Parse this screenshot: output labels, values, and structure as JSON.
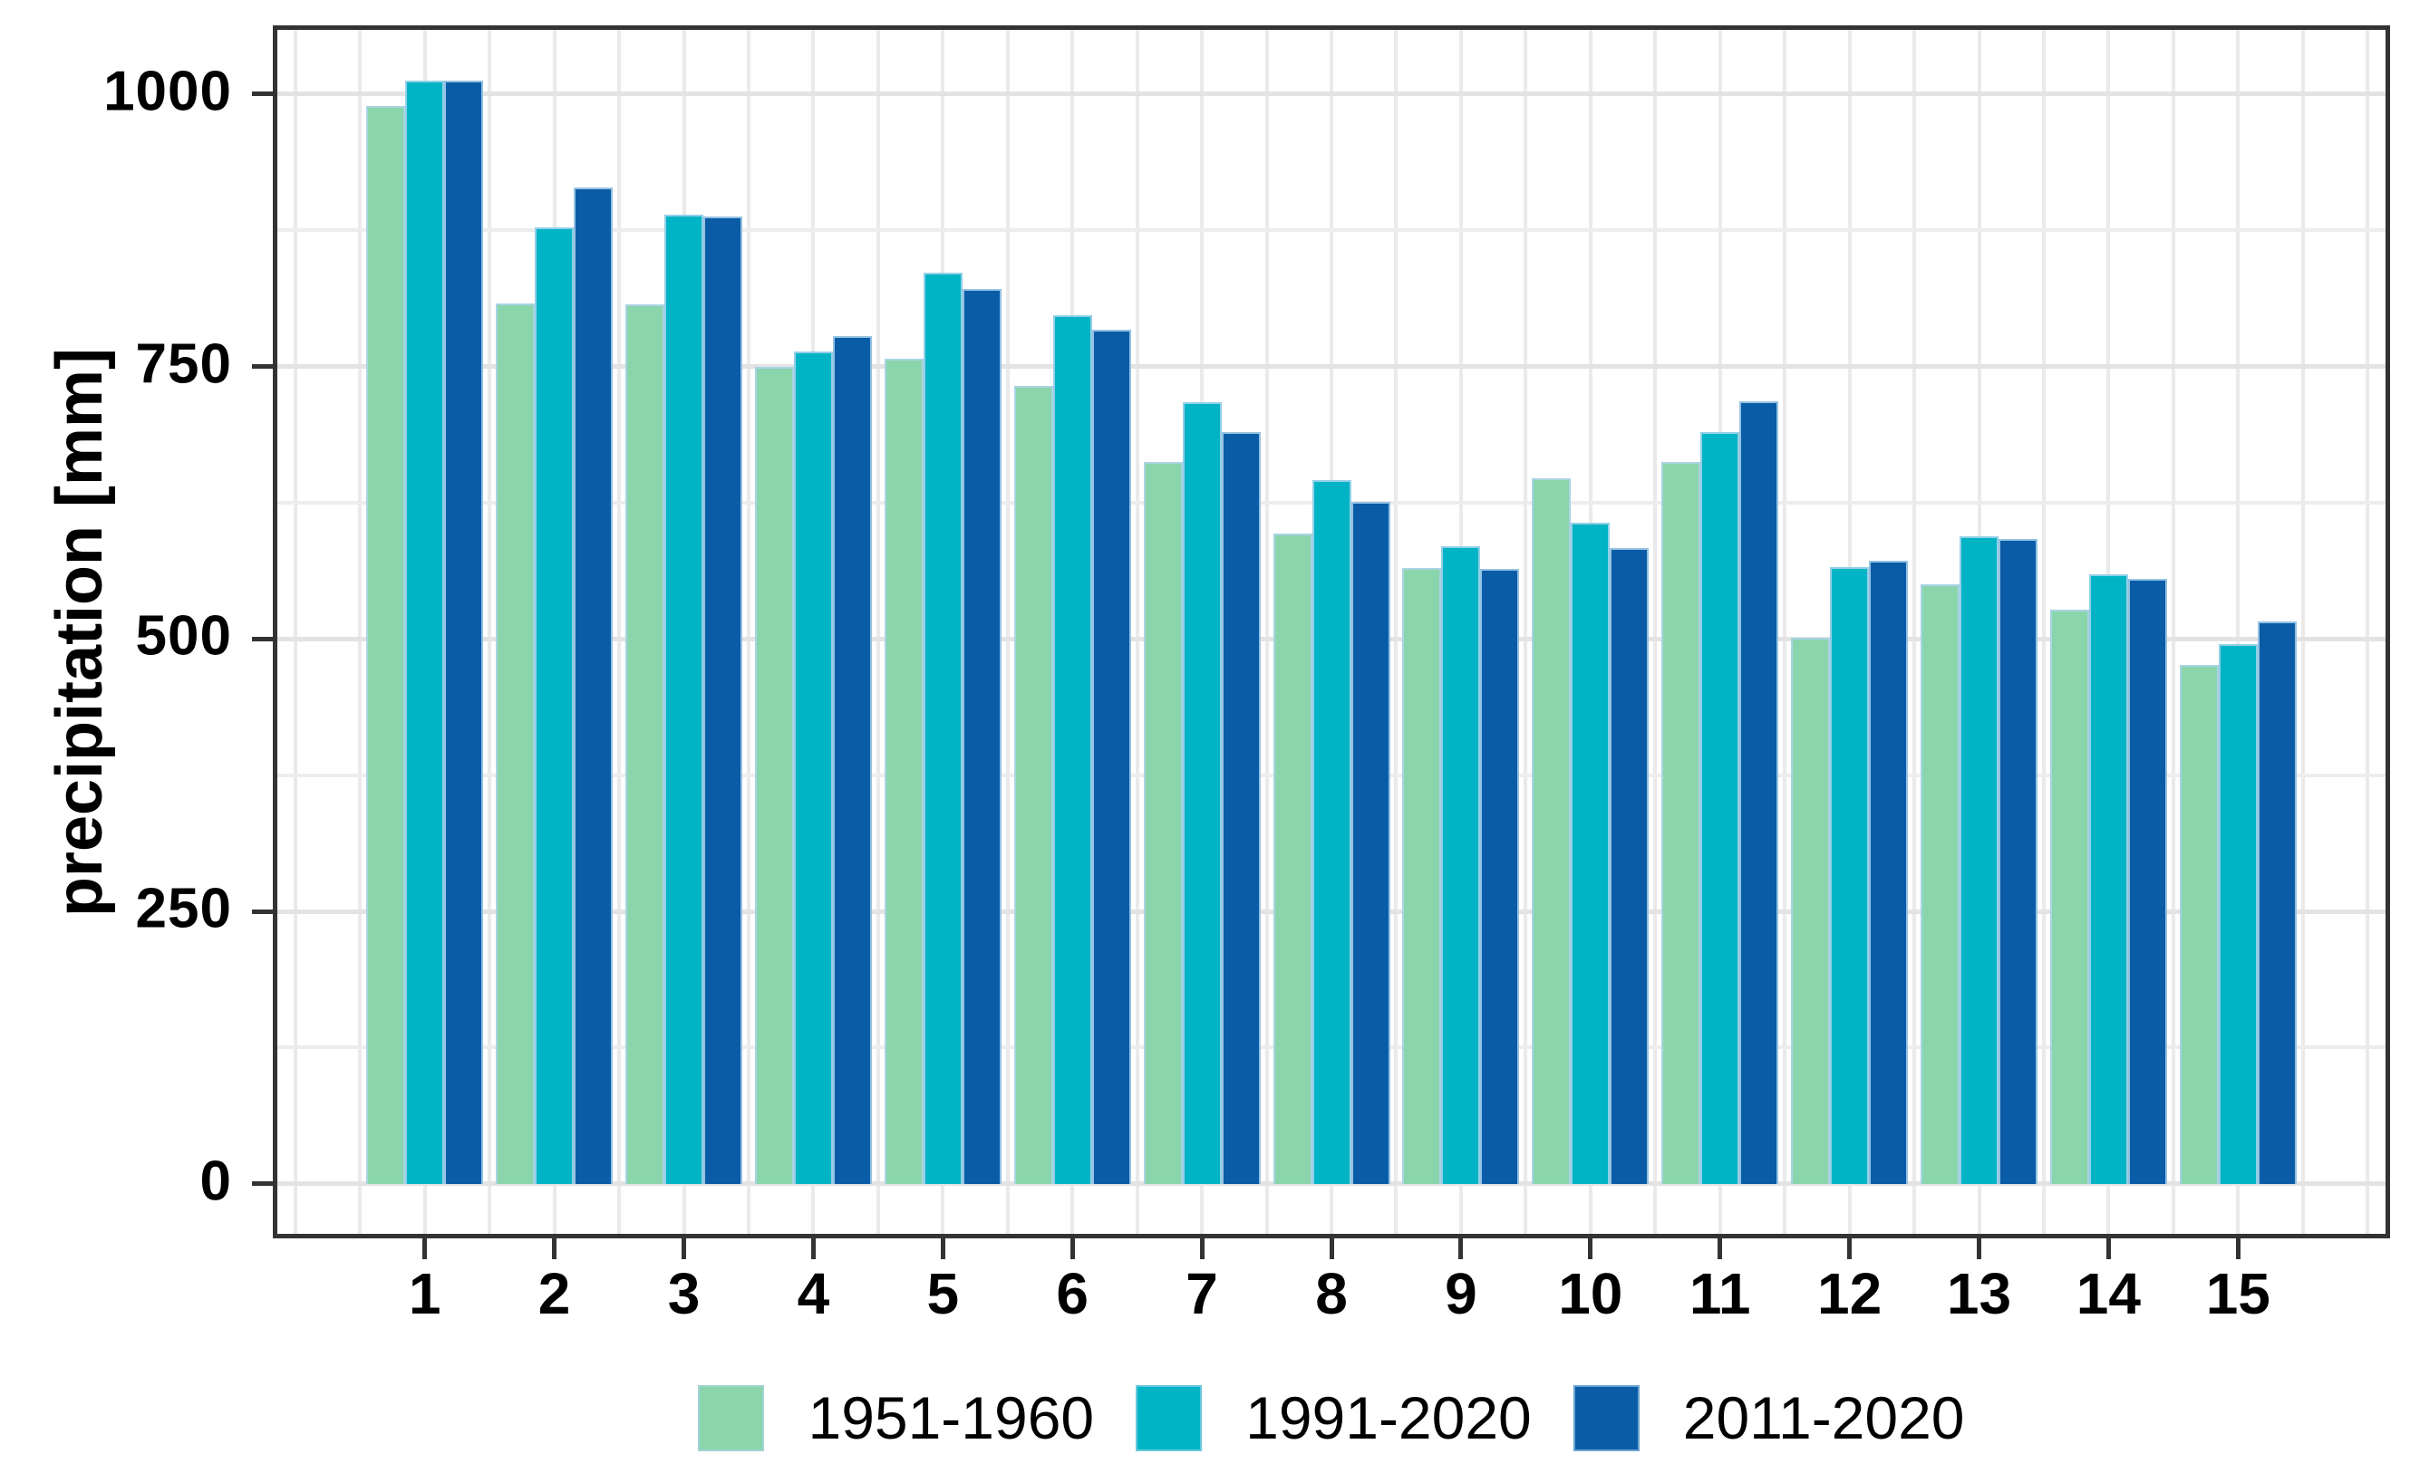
{
  "chart_data": {
    "type": "bar",
    "title": "",
    "xlabel": "",
    "ylabel": "precipitation [mm]",
    "categories": [
      "1",
      "2",
      "3",
      "4",
      "5",
      "6",
      "7",
      "8",
      "9",
      "10",
      "11",
      "12",
      "13",
      "14",
      "15"
    ],
    "series": [
      {
        "name": "1951-1960",
        "color": "#8BD5AC",
        "values": [
          989,
          808,
          807,
          750,
          757,
          732,
          662,
          597,
          565,
          647,
          662,
          501,
          550,
          527,
          476
        ]
      },
      {
        "name": "1991-2020",
        "color": "#00B4C5",
        "values": [
          1012,
          878,
          889,
          764,
          836,
          797,
          717,
          646,
          585,
          607,
          690,
          566,
          594,
          559,
          495
        ]
      },
      {
        "name": "2011-2020",
        "color": "#0A5CA7",
        "values": [
          1012,
          914,
          888,
          778,
          821,
          784,
          690,
          626,
          564,
          583,
          718,
          572,
          592,
          555,
          516
        ]
      }
    ],
    "y_ticks": [
      0,
      250,
      500,
      750,
      1000
    ],
    "y_minor_gridlines": [
      125,
      375,
      625,
      875
    ],
    "ylim": [
      -50,
      1063
    ],
    "bar_group_width": 0.9,
    "grid": true,
    "legend_position": "bottom",
    "axis_color": "#333333",
    "gridline_color": "#E8E8E8",
    "bar_outline_color": "#ADD3EC",
    "background": "#FFFFFF"
  }
}
